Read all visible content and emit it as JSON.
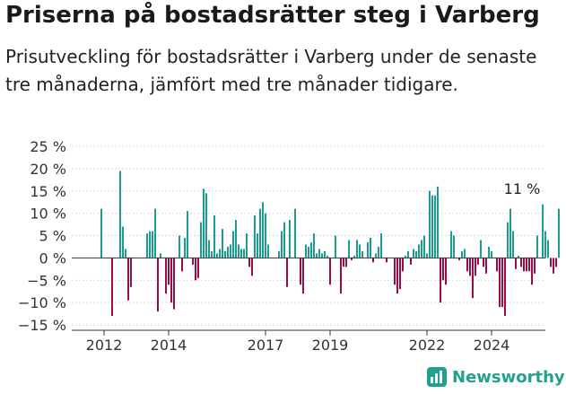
{
  "title": "Priserna på bostadsrätter steg i Varberg",
  "subtitle": "Prisutveckling för bostadsrätter i Varberg under de senaste tre månaderna, jämfört med tre månader tidigare.",
  "brand": {
    "name": "Newsworthy"
  },
  "colors": {
    "positive": "#1a9e92",
    "negative": "#9b0b45",
    "axis": "#333333",
    "grid": "#d9d9d9"
  },
  "chart_data": {
    "type": "bar",
    "title": "Priserna på bostadsrätter steg i Varberg",
    "xlabel": "",
    "ylabel": "",
    "ylim": [
      -15,
      25
    ],
    "yticks": [
      25,
      20,
      15,
      10,
      5,
      0,
      -5,
      -10,
      -15
    ],
    "ytick_labels": [
      "25 %",
      "20 %",
      "15 %",
      "10 %",
      "5 %",
      "0 %",
      "−5 %",
      "−10 %",
      "−15 %"
    ],
    "xticks": [
      {
        "label": "2012",
        "index": 1
      },
      {
        "label": "2014",
        "index": 25
      },
      {
        "label": "2017",
        "index": 61
      },
      {
        "label": "2019",
        "index": 85
      },
      {
        "label": "2022",
        "index": 121
      },
      {
        "label": "2024",
        "index": 145
      }
    ],
    "annotation": {
      "text": "11 %",
      "index": 157
    },
    "values": [
      11,
      0,
      0,
      0,
      -13,
      0,
      0,
      19.5,
      7,
      2,
      -9.5,
      -6.5,
      0,
      0,
      0,
      0,
      0,
      5.5,
      6,
      6,
      11,
      -12,
      1,
      0,
      -8,
      -6,
      -10,
      -11.5,
      0,
      5,
      -3,
      4.5,
      10.5,
      0,
      -1.5,
      -5,
      -4.5,
      8,
      15.5,
      14.5,
      4,
      1.5,
      9.5,
      1,
      2,
      6.5,
      1.5,
      2.5,
      3,
      6,
      8.5,
      3,
      2,
      2,
      5.5,
      -2,
      -4,
      9.5,
      5.5,
      11,
      12.5,
      10,
      3,
      0,
      0,
      0,
      1.5,
      6,
      8,
      -6.5,
      8.5,
      0,
      11,
      0,
      -6,
      -8,
      3,
      2.5,
      3.5,
      5.5,
      1,
      2,
      1,
      1.5,
      0.5,
      -6,
      0,
      5,
      0,
      -8,
      -2,
      -2,
      4,
      -0.5,
      0.5,
      4,
      3,
      1.5,
      0,
      3.5,
      4.5,
      -1,
      1,
      2.5,
      5.5,
      0,
      -1,
      0,
      0,
      -6,
      -8,
      -7,
      -3,
      0.5,
      1.5,
      -1.5,
      2,
      1.5,
      3,
      4,
      5,
      1,
      15,
      14,
      14,
      16,
      -10,
      -5,
      -6,
      0,
      6,
      5,
      0,
      -0.5,
      1.5,
      2,
      -3,
      -4,
      -9,
      -4,
      -1.5,
      4,
      -2,
      -3.5,
      2.5,
      1.5,
      0,
      -3,
      -11,
      -11,
      -13,
      8,
      11,
      6,
      -2.5,
      0.5,
      -2,
      -3,
      -3,
      -3,
      -6,
      -3.5,
      5,
      0,
      12,
      6,
      4,
      -2,
      -3.5,
      -2,
      11
    ]
  }
}
